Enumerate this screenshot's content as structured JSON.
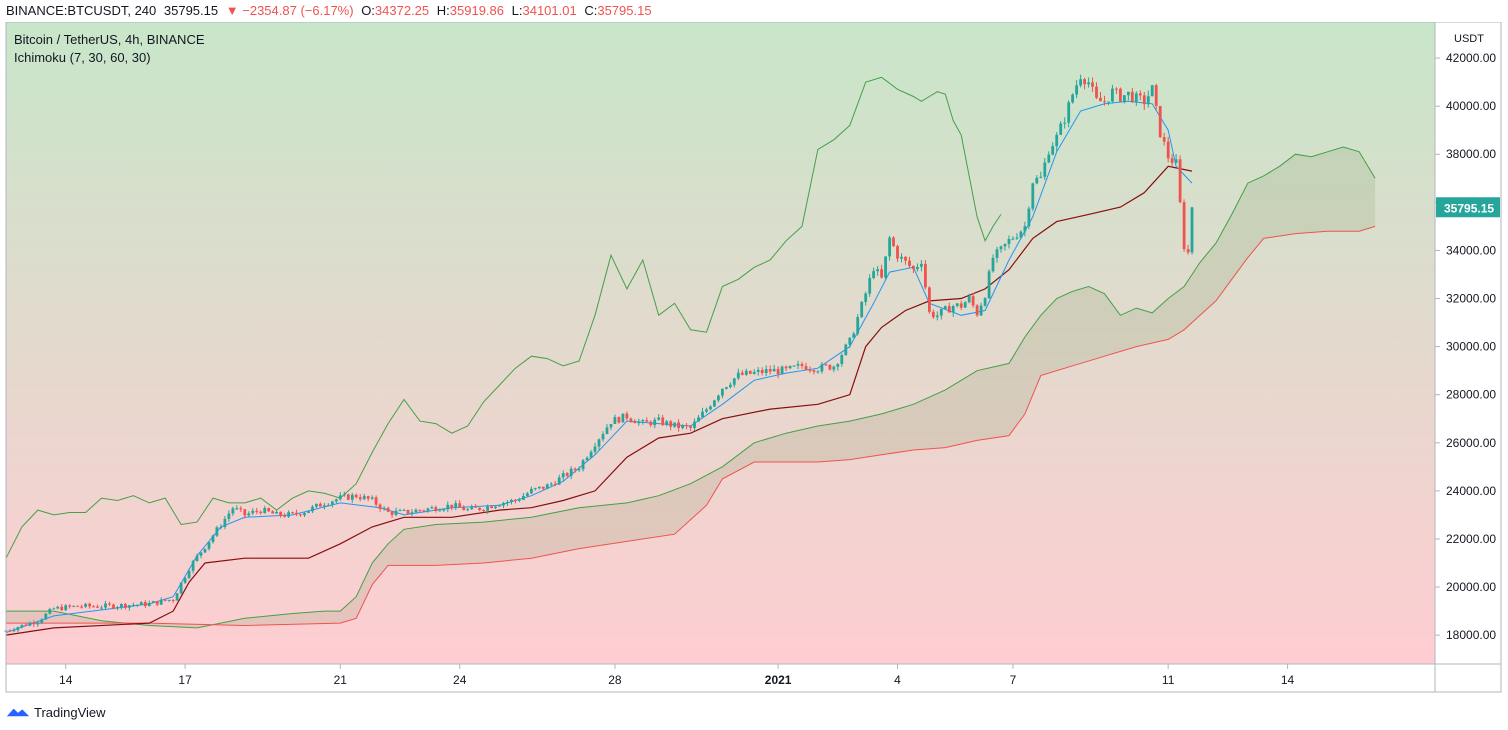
{
  "header": {
    "symbol": "BINANCE:BTCUSDT, 240",
    "last": "35795.15",
    "arrow": "▼",
    "change": "−2354.87 (−6.17%)",
    "o_label": "O:",
    "o_value": "34372.25",
    "h_label": "H:",
    "h_value": "35919.86",
    "l_label": "L:",
    "l_value": "34101.01",
    "c_label": "C:",
    "c_value": "35795.15"
  },
  "legend": {
    "title": "Bitcoin / TetherUS, 4h, BINANCE",
    "indicator": "Ichimoku (7, 30, 60, 30)"
  },
  "footer": {
    "brand": "TradingView"
  },
  "colors": {
    "up": "#26a69a",
    "down": "#ef5350",
    "tenkan": "#2196f3",
    "kijun": "#880e0e",
    "chikou": "#43a047",
    "spanA": "#43a047",
    "spanB": "#ef5350",
    "bg_top": "#c8e6c9",
    "bg_bottom": "#ffcdd2",
    "price_tag": "#26a69a"
  },
  "chart_data": {
    "type": "candlestick",
    "title": "Bitcoin / TetherUS, 4h, BINANCE",
    "y_axis_unit": "USDT",
    "y_ticks": [
      18000,
      20000,
      22000,
      24000,
      26000,
      28000,
      30000,
      32000,
      34000,
      36000,
      38000,
      40000,
      42000
    ],
    "ylim": [
      16800,
      43500
    ],
    "x_ticks": [
      "14",
      "17",
      "21",
      "24",
      "28",
      "2021",
      "4",
      "7",
      "11",
      "14"
    ],
    "x_tick_index": [
      15,
      45,
      84,
      114,
      153,
      194,
      224,
      253,
      292,
      322
    ],
    "last_price": "35795.15",
    "candle_width_note": "4h bars",
    "close_path": [
      [
        0,
        18200
      ],
      [
        4,
        18400
      ],
      [
        8,
        18600
      ],
      [
        12,
        19100
      ],
      [
        18,
        19200
      ],
      [
        24,
        19200
      ],
      [
        30,
        19250
      ],
      [
        36,
        19300
      ],
      [
        42,
        19500
      ],
      [
        46,
        20800
      ],
      [
        50,
        21700
      ],
      [
        54,
        22600
      ],
      [
        57,
        23300
      ],
      [
        60,
        23000
      ],
      [
        64,
        23200
      ],
      [
        68,
        23000
      ],
      [
        72,
        23000
      ],
      [
        76,
        23200
      ],
      [
        80,
        23500
      ],
      [
        84,
        23700
      ],
      [
        88,
        23800
      ],
      [
        92,
        23600
      ],
      [
        96,
        23100
      ],
      [
        100,
        23100
      ],
      [
        104,
        23200
      ],
      [
        108,
        23300
      ],
      [
        112,
        23400
      ],
      [
        116,
        23200
      ],
      [
        120,
        23300
      ],
      [
        124,
        23500
      ],
      [
        128,
        23600
      ],
      [
        132,
        24000
      ],
      [
        136,
        24200
      ],
      [
        140,
        24600
      ],
      [
        144,
        25000
      ],
      [
        148,
        26000
      ],
      [
        152,
        26900
      ],
      [
        156,
        27100
      ],
      [
        160,
        26800
      ],
      [
        164,
        26900
      ],
      [
        168,
        26700
      ],
      [
        172,
        26600
      ],
      [
        176,
        27400
      ],
      [
        180,
        28300
      ],
      [
        184,
        28800
      ],
      [
        188,
        28900
      ],
      [
        192,
        29000
      ],
      [
        196,
        29000
      ],
      [
        200,
        29200
      ],
      [
        204,
        29100
      ],
      [
        208,
        29200
      ],
      [
        212,
        30200
      ],
      [
        216,
        32200
      ],
      [
        218,
        33300
      ],
      [
        220,
        32800
      ],
      [
        222,
        34500
      ],
      [
        224,
        33800
      ],
      [
        226,
        33500
      ],
      [
        228,
        33200
      ],
      [
        230,
        33600
      ],
      [
        232,
        31400
      ],
      [
        234,
        31300
      ],
      [
        236,
        31500
      ],
      [
        238,
        31700
      ],
      [
        240,
        31700
      ],
      [
        242,
        32000
      ],
      [
        244,
        31400
      ],
      [
        246,
        32200
      ],
      [
        248,
        33700
      ],
      [
        250,
        34000
      ],
      [
        252,
        34400
      ],
      [
        254,
        34700
      ],
      [
        256,
        35000
      ],
      [
        258,
        36900
      ],
      [
        260,
        37000
      ],
      [
        262,
        38200
      ],
      [
        264,
        38700
      ],
      [
        266,
        39500
      ],
      [
        268,
        40500
      ],
      [
        270,
        41300
      ],
      [
        272,
        41000
      ],
      [
        274,
        40200
      ],
      [
        276,
        40200
      ],
      [
        278,
        40600
      ],
      [
        280,
        40400
      ],
      [
        282,
        40500
      ],
      [
        284,
        40300
      ],
      [
        286,
        40200
      ],
      [
        288,
        40700
      ],
      [
        290,
        38900
      ],
      [
        292,
        37900
      ],
      [
        294,
        37600
      ],
      [
        296,
        34200
      ],
      [
        297,
        33900
      ],
      [
        298,
        35795
      ]
    ],
    "tenkan_path": [
      [
        0,
        18100
      ],
      [
        12,
        18800
      ],
      [
        36,
        19300
      ],
      [
        42,
        19600
      ],
      [
        48,
        21300
      ],
      [
        54,
        22500
      ],
      [
        60,
        22900
      ],
      [
        72,
        23000
      ],
      [
        84,
        23500
      ],
      [
        94,
        23300
      ],
      [
        100,
        23000
      ],
      [
        112,
        23300
      ],
      [
        124,
        23400
      ],
      [
        132,
        23800
      ],
      [
        140,
        24400
      ],
      [
        148,
        25500
      ],
      [
        156,
        26900
      ],
      [
        164,
        26800
      ],
      [
        172,
        26700
      ],
      [
        180,
        27600
      ],
      [
        188,
        28600
      ],
      [
        196,
        28900
      ],
      [
        204,
        29100
      ],
      [
        212,
        30000
      ],
      [
        218,
        31800
      ],
      [
        222,
        33100
      ],
      [
        228,
        33300
      ],
      [
        232,
        31800
      ],
      [
        240,
        31300
      ],
      [
        246,
        31500
      ],
      [
        252,
        33600
      ],
      [
        258,
        35400
      ],
      [
        264,
        38100
      ],
      [
        270,
        39800
      ],
      [
        276,
        40100
      ],
      [
        282,
        40200
      ],
      [
        288,
        40100
      ],
      [
        292,
        39000
      ],
      [
        294,
        37500
      ],
      [
        298,
        36800
      ]
    ],
    "kijun_path": [
      [
        0,
        18000
      ],
      [
        12,
        18300
      ],
      [
        36,
        18500
      ],
      [
        42,
        19000
      ],
      [
        46,
        20200
      ],
      [
        50,
        21000
      ],
      [
        60,
        21200
      ],
      [
        76,
        21200
      ],
      [
        84,
        21800
      ],
      [
        92,
        22500
      ],
      [
        100,
        22900
      ],
      [
        112,
        22900
      ],
      [
        124,
        23200
      ],
      [
        132,
        23300
      ],
      [
        140,
        23600
      ],
      [
        148,
        24000
      ],
      [
        156,
        25400
      ],
      [
        164,
        26200
      ],
      [
        172,
        26400
      ],
      [
        180,
        27000
      ],
      [
        192,
        27400
      ],
      [
        204,
        27600
      ],
      [
        212,
        28000
      ],
      [
        216,
        30000
      ],
      [
        220,
        30800
      ],
      [
        226,
        31500
      ],
      [
        232,
        31900
      ],
      [
        240,
        32000
      ],
      [
        246,
        32400
      ],
      [
        252,
        33200
      ],
      [
        258,
        34500
      ],
      [
        264,
        35200
      ],
      [
        272,
        35500
      ],
      [
        280,
        35800
      ],
      [
        286,
        36400
      ],
      [
        292,
        37500
      ],
      [
        298,
        37300
      ]
    ],
    "chikou_path": [
      [
        0,
        21200
      ],
      [
        4,
        22500
      ],
      [
        8,
        23200
      ],
      [
        12,
        23000
      ],
      [
        16,
        23100
      ],
      [
        20,
        23100
      ],
      [
        24,
        23700
      ],
      [
        28,
        23600
      ],
      [
        32,
        23800
      ],
      [
        36,
        23500
      ],
      [
        40,
        23700
      ],
      [
        44,
        22600
      ],
      [
        48,
        22700
      ],
      [
        52,
        23700
      ],
      [
        56,
        23500
      ],
      [
        60,
        23500
      ],
      [
        64,
        23700
      ],
      [
        68,
        23200
      ],
      [
        72,
        23700
      ],
      [
        76,
        24000
      ],
      [
        80,
        23900
      ],
      [
        84,
        23700
      ],
      [
        88,
        24300
      ],
      [
        92,
        25600
      ],
      [
        96,
        26800
      ],
      [
        100,
        27800
      ],
      [
        104,
        26900
      ],
      [
        108,
        26800
      ],
      [
        112,
        26400
      ],
      [
        116,
        26700
      ],
      [
        120,
        27700
      ],
      [
        124,
        28400
      ],
      [
        128,
        29100
      ],
      [
        132,
        29600
      ],
      [
        136,
        29500
      ],
      [
        140,
        29200
      ],
      [
        144,
        29400
      ],
      [
        148,
        31300
      ],
      [
        152,
        33800
      ],
      [
        156,
        32400
      ],
      [
        160,
        33600
      ],
      [
        164,
        31300
      ],
      [
        168,
        31800
      ],
      [
        172,
        30700
      ],
      [
        176,
        30600
      ],
      [
        180,
        32500
      ],
      [
        184,
        32800
      ],
      [
        188,
        33300
      ],
      [
        192,
        33600
      ],
      [
        196,
        34400
      ],
      [
        200,
        35000
      ],
      [
        204,
        38200
      ],
      [
        208,
        38600
      ],
      [
        212,
        39200
      ],
      [
        216,
        41000
      ],
      [
        220,
        41200
      ],
      [
        224,
        40700
      ],
      [
        228,
        40400
      ],
      [
        230,
        40200
      ],
      [
        232,
        40400
      ],
      [
        234,
        40600
      ],
      [
        236,
        40500
      ],
      [
        238,
        39400
      ],
      [
        240,
        38800
      ],
      [
        244,
        35400
      ],
      [
        246,
        34400
      ],
      [
        248,
        35000
      ],
      [
        250,
        35500
      ]
    ],
    "span_a_path": [
      [
        0,
        19000
      ],
      [
        12,
        19000
      ],
      [
        24,
        18600
      ],
      [
        36,
        18400
      ],
      [
        48,
        18300
      ],
      [
        60,
        18700
      ],
      [
        72,
        18900
      ],
      [
        80,
        19000
      ],
      [
        84,
        19000
      ],
      [
        88,
        19600
      ],
      [
        92,
        21000
      ],
      [
        96,
        21800
      ],
      [
        100,
        22400
      ],
      [
        108,
        22600
      ],
      [
        120,
        22700
      ],
      [
        132,
        22900
      ],
      [
        144,
        23300
      ],
      [
        156,
        23500
      ],
      [
        164,
        23800
      ],
      [
        172,
        24300
      ],
      [
        180,
        25000
      ],
      [
        188,
        26000
      ],
      [
        196,
        26400
      ],
      [
        204,
        26700
      ],
      [
        212,
        26900
      ],
      [
        220,
        27200
      ],
      [
        228,
        27600
      ],
      [
        236,
        28200
      ],
      [
        244,
        29000
      ],
      [
        252,
        29300
      ],
      [
        256,
        30400
      ],
      [
        260,
        31300
      ],
      [
        264,
        32000
      ],
      [
        268,
        32300
      ],
      [
        272,
        32500
      ],
      [
        276,
        32200
      ],
      [
        280,
        31300
      ],
      [
        284,
        31600
      ],
      [
        288,
        31400
      ],
      [
        292,
        32000
      ],
      [
        296,
        32500
      ],
      [
        300,
        33500
      ],
      [
        304,
        34300
      ],
      [
        308,
        35500
      ],
      [
        312,
        36800
      ],
      [
        316,
        37100
      ],
      [
        320,
        37500
      ],
      [
        324,
        38000
      ],
      [
        328,
        37900
      ],
      [
        332,
        38100
      ],
      [
        336,
        38300
      ],
      [
        340,
        38100
      ],
      [
        344,
        37000
      ]
    ],
    "span_b_path": [
      [
        0,
        18500
      ],
      [
        36,
        18500
      ],
      [
        60,
        18400
      ],
      [
        84,
        18500
      ],
      [
        88,
        18700
      ],
      [
        92,
        20100
      ],
      [
        96,
        20900
      ],
      [
        108,
        20900
      ],
      [
        120,
        21000
      ],
      [
        132,
        21200
      ],
      [
        144,
        21600
      ],
      [
        156,
        21900
      ],
      [
        168,
        22200
      ],
      [
        176,
        23400
      ],
      [
        180,
        24500
      ],
      [
        188,
        25200
      ],
      [
        204,
        25200
      ],
      [
        212,
        25300
      ],
      [
        220,
        25500
      ],
      [
        228,
        25700
      ],
      [
        236,
        25800
      ],
      [
        244,
        26100
      ],
      [
        252,
        26300
      ],
      [
        256,
        27200
      ],
      [
        260,
        28800
      ],
      [
        268,
        29200
      ],
      [
        276,
        29600
      ],
      [
        284,
        30000
      ],
      [
        292,
        30300
      ],
      [
        296,
        30700
      ],
      [
        300,
        31300
      ],
      [
        304,
        31900
      ],
      [
        308,
        32800
      ],
      [
        312,
        33700
      ],
      [
        316,
        34500
      ],
      [
        324,
        34700
      ],
      [
        332,
        34800
      ],
      [
        340,
        34800
      ],
      [
        344,
        35000
      ]
    ]
  }
}
